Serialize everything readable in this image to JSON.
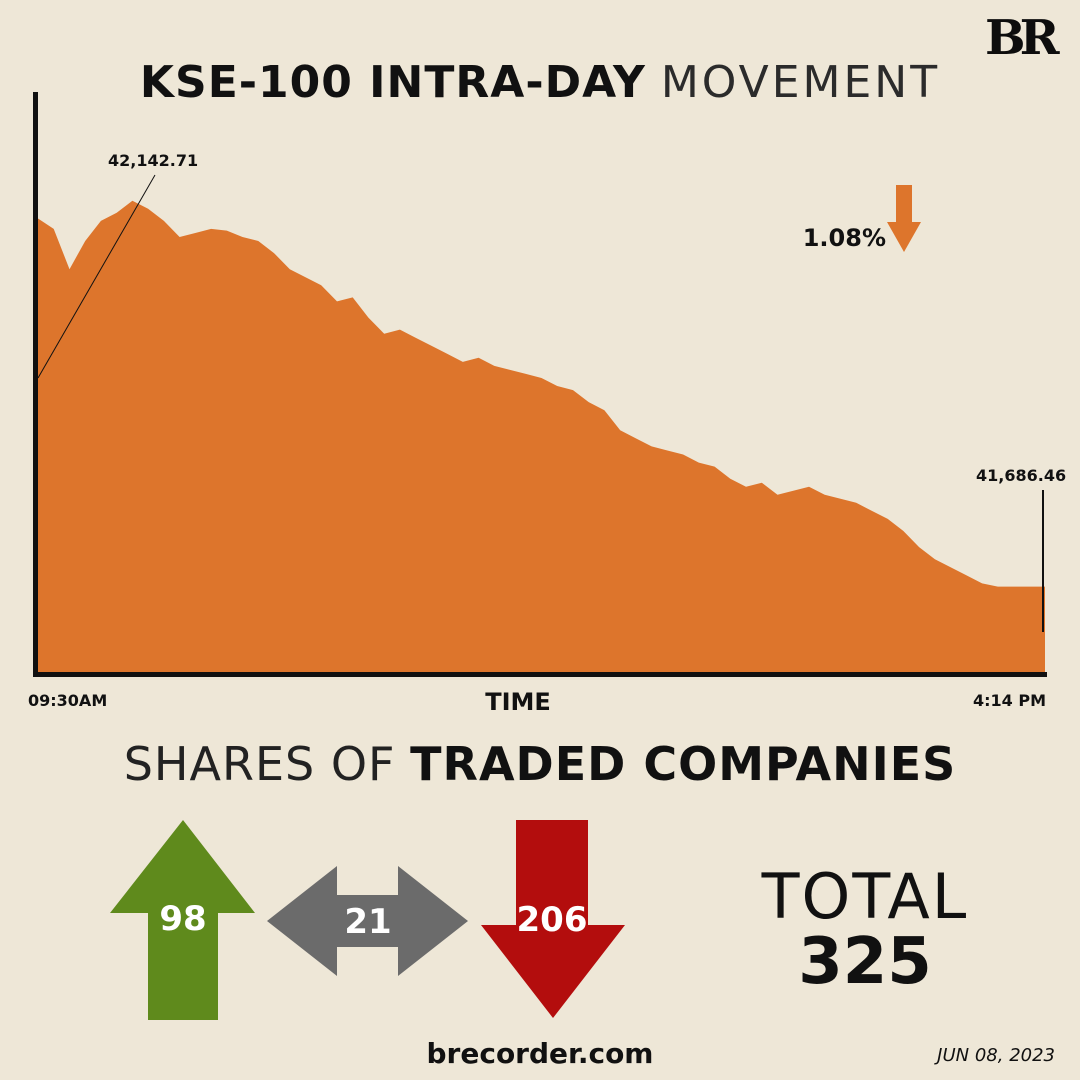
{
  "brand": {
    "logo": "BR",
    "website": "brecorder.com",
    "date": "JUN 08, 2023"
  },
  "title": {
    "bold": "KSE-100 INTRA-DAY",
    "light": "MOVEMENT"
  },
  "chart_data": {
    "type": "area",
    "title": "KSE-100 INTRA-DAY MOVEMENT",
    "xlabel": "TIME",
    "ylabel": "",
    "x_start_label": "09:30AM",
    "x_end_label": "4:14 PM",
    "open_value_label": "42,142.71",
    "close_value_label": "41,686.46",
    "change_label": "1.08%",
    "change_direction": "down",
    "ylim": [
      41580,
      42300
    ],
    "color": "#dd752c",
    "series": [
      {
        "values": [
          42143,
          42130,
          42080,
          42115,
          42140,
          42150,
          42165,
          42155,
          42140,
          42120,
          42125,
          42130,
          42128,
          42120,
          42115,
          42100,
          42080,
          42070,
          42060,
          42040,
          42045,
          42020,
          42000,
          42005,
          41995,
          41985,
          41975,
          41965,
          41970,
          41960,
          41955,
          41950,
          41945,
          41935,
          41930,
          41915,
          41905,
          41880,
          41870,
          41860,
          41855,
          41850,
          41840,
          41835,
          41820,
          41810,
          41815,
          41800,
          41805,
          41810,
          41800,
          41795,
          41790,
          41780,
          41770,
          41755,
          41735,
          41720,
          41710,
          41700,
          41690,
          41686,
          41686,
          41686,
          41686
        ]
      }
    ]
  },
  "section": {
    "light": "SHARES OF",
    "bold": "TRADED COMPANIES"
  },
  "shares": {
    "advanced": "98",
    "unchanged": "21",
    "declined": "206",
    "total_label": "TOTAL",
    "total": "325",
    "colors": {
      "advanced": "#5f8a1c",
      "unchanged": "#6b6b6b",
      "declined": "#b30d0d"
    }
  }
}
